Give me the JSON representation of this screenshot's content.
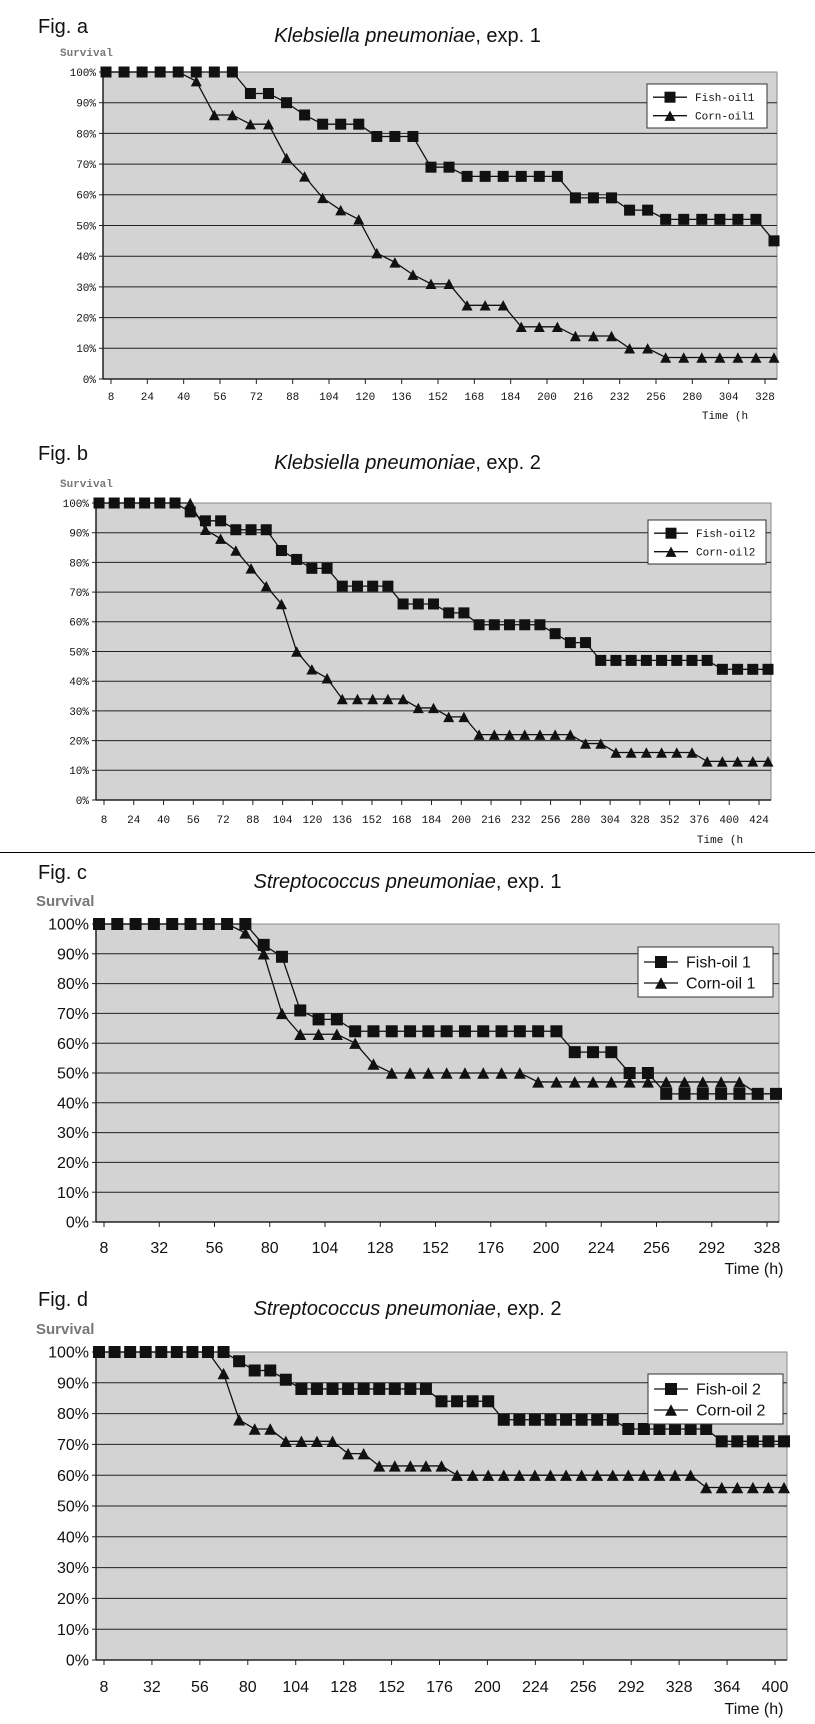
{
  "chart_data": [
    {
      "figure_label": "Fig. a",
      "title_italic": "Klebsiella pneumoniae",
      "title_rest": ", exp. 1",
      "type": "line",
      "ylabel": "Survival",
      "xlabel": "Time (h",
      "y_ticks": [
        "100%",
        "90%",
        "80%",
        "70%",
        "60%",
        "50%",
        "40%",
        "30%",
        "20%",
        "10%",
        "0%"
      ],
      "x_ticks": [
        "8",
        "24",
        "40",
        "56",
        "72",
        "88",
        "104",
        "120",
        "136",
        "152",
        "168",
        "184",
        "200",
        "216",
        "232",
        "256",
        "280",
        "304",
        "328"
      ],
      "ylim": [
        0,
        100
      ],
      "grid": true,
      "legend_position": "top-right",
      "series": [
        {
          "name": "Fish-oil1",
          "marker": "square",
          "values": [
            100,
            100,
            100,
            100,
            100,
            100,
            100,
            100,
            93,
            93,
            90,
            86,
            83,
            83,
            83,
            79,
            79,
            79,
            69,
            69,
            66,
            66,
            66,
            66,
            66,
            66,
            59,
            59,
            59,
            55,
            55,
            52,
            52,
            52,
            52,
            52,
            52,
            45
          ]
        },
        {
          "name": "Corn-oil1",
          "marker": "triangle",
          "values": [
            100,
            100,
            100,
            100,
            100,
            97,
            86,
            86,
            83,
            83,
            72,
            66,
            59,
            55,
            52,
            41,
            38,
            34,
            31,
            31,
            24,
            24,
            24,
            17,
            17,
            17,
            14,
            14,
            14,
            10,
            10,
            7,
            7,
            7,
            7,
            7,
            7,
            7
          ]
        }
      ]
    },
    {
      "figure_label": "Fig. b",
      "title_italic": "Klebsiella pneumoniae",
      "title_rest": ", exp. 2",
      "type": "line",
      "ylabel": "Survival",
      "xlabel": "Time (h",
      "y_ticks": [
        "100%",
        "90%",
        "80%",
        "70%",
        "60%",
        "50%",
        "40%",
        "30%",
        "20%",
        "10%",
        "0%"
      ],
      "x_ticks": [
        "8",
        "24",
        "40",
        "56",
        "72",
        "88",
        "104",
        "120",
        "136",
        "152",
        "168",
        "184",
        "200",
        "216",
        "232",
        "256",
        "280",
        "304",
        "328",
        "352",
        "376",
        "400",
        "424"
      ],
      "ylim": [
        0,
        100
      ],
      "grid": true,
      "legend_position": "top-right",
      "series": [
        {
          "name": "Fish-oil2",
          "marker": "square",
          "values": [
            100,
            100,
            100,
            100,
            100,
            100,
            97,
            94,
            94,
            91,
            91,
            91,
            84,
            81,
            78,
            78,
            72,
            72,
            72,
            72,
            66,
            66,
            66,
            63,
            63,
            59,
            59,
            59,
            59,
            59,
            56,
            53,
            53,
            47,
            47,
            47,
            47,
            47,
            47,
            47,
            47,
            44,
            44,
            44,
            44
          ]
        },
        {
          "name": "Corn-oil2",
          "marker": "triangle",
          "values": [
            100,
            100,
            100,
            100,
            100,
            100,
            100,
            91,
            88,
            84,
            78,
            72,
            66,
            50,
            44,
            41,
            34,
            34,
            34,
            34,
            34,
            31,
            31,
            28,
            28,
            22,
            22,
            22,
            22,
            22,
            22,
            22,
            19,
            19,
            16,
            16,
            16,
            16,
            16,
            16,
            13,
            13,
            13,
            13,
            13
          ]
        }
      ]
    },
    {
      "figure_label": "Fig. c",
      "title_italic": "Streptococcus pneumoniae",
      "title_rest": ", exp. 1",
      "type": "line",
      "ylabel": "Survival",
      "xlabel": "Time (h)",
      "y_ticks": [
        "100%",
        "90%",
        "80%",
        "70%",
        "60%",
        "50%",
        "40%",
        "30%",
        "20%",
        "10%",
        "0%"
      ],
      "x_ticks": [
        "8",
        "32",
        "56",
        "80",
        "104",
        "128",
        "152",
        "176",
        "200",
        "224",
        "256",
        "292",
        "328"
      ],
      "ylim": [
        0,
        100
      ],
      "grid": true,
      "legend_position": "top-right",
      "series": [
        {
          "name": "Fish-oil 1",
          "marker": "square",
          "values": [
            100,
            100,
            100,
            100,
            100,
            100,
            100,
            100,
            100,
            93,
            89,
            71,
            68,
            68,
            64,
            64,
            64,
            64,
            64,
            64,
            64,
            64,
            64,
            64,
            64,
            64,
            57,
            57,
            57,
            50,
            50,
            43,
            43,
            43,
            43,
            43,
            43,
            43
          ]
        },
        {
          "name": "Corn-oil 1",
          "marker": "triangle",
          "values": [
            100,
            100,
            100,
            100,
            100,
            100,
            100,
            100,
            97,
            90,
            70,
            63,
            63,
            63,
            60,
            53,
            50,
            50,
            50,
            50,
            50,
            50,
            50,
            50,
            47,
            47,
            47,
            47,
            47,
            47,
            47,
            47,
            47,
            47,
            47,
            47,
            43,
            43
          ]
        }
      ]
    },
    {
      "figure_label": "Fig. d",
      "title_italic": "Streptococcus pneumoniae",
      "title_rest": ", exp. 2",
      "type": "line",
      "ylabel": "Survival",
      "xlabel": "Time (h)",
      "y_ticks": [
        "100%",
        "90%",
        "80%",
        "70%",
        "60%",
        "50%",
        "40%",
        "30%",
        "20%",
        "10%",
        "0%"
      ],
      "x_ticks": [
        "8",
        "32",
        "56",
        "80",
        "104",
        "128",
        "152",
        "176",
        "200",
        "224",
        "256",
        "292",
        "328",
        "364",
        "400"
      ],
      "ylim": [
        0,
        100
      ],
      "grid": true,
      "legend_position": "top-right",
      "series": [
        {
          "name": "Fish-oil 2",
          "marker": "square",
          "values": [
            100,
            100,
            100,
            100,
            100,
            100,
            100,
            100,
            100,
            97,
            94,
            94,
            91,
            88,
            88,
            88,
            88,
            88,
            88,
            88,
            88,
            88,
            84,
            84,
            84,
            84,
            78,
            78,
            78,
            78,
            78,
            78,
            78,
            78,
            75,
            75,
            75,
            75,
            75,
            75,
            71,
            71,
            71,
            71,
            71
          ]
        },
        {
          "name": "Corn-oil 2",
          "marker": "triangle",
          "values": [
            100,
            100,
            100,
            100,
            100,
            100,
            100,
            100,
            93,
            78,
            75,
            75,
            71,
            71,
            71,
            71,
            67,
            67,
            63,
            63,
            63,
            63,
            63,
            60,
            60,
            60,
            60,
            60,
            60,
            60,
            60,
            60,
            60,
            60,
            60,
            60,
            60,
            60,
            60,
            56,
            56,
            56,
            56,
            56,
            56
          ]
        }
      ]
    }
  ]
}
